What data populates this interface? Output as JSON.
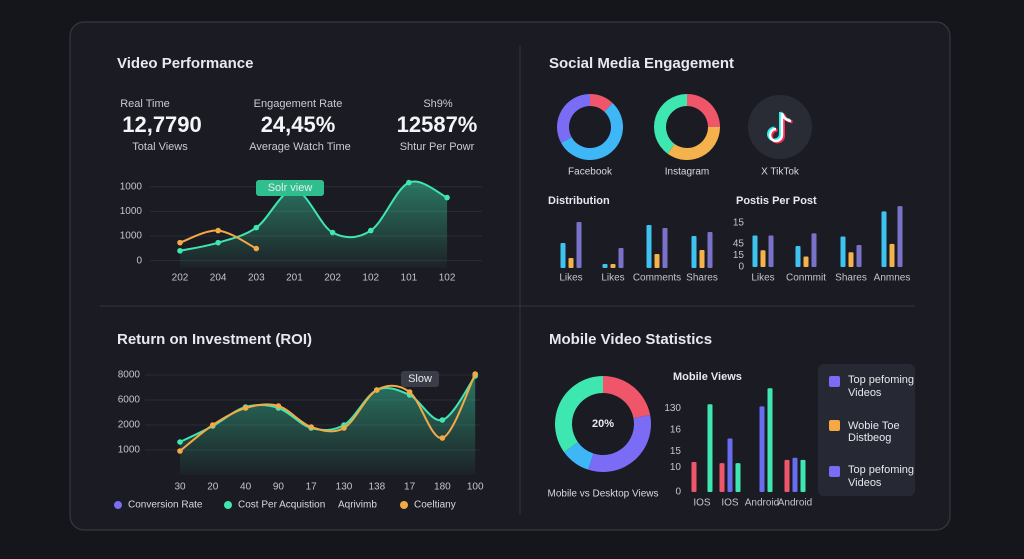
{
  "panels": {
    "video": {
      "kpis": [
        {
          "label": "Real Time",
          "value": "12,7790",
          "caption": "Total Views"
        },
        {
          "label": "Engagement Rate",
          "value": "24,45%",
          "caption": "Average Watch Time"
        },
        {
          "label": "Sh9%",
          "value": "12587%",
          "caption": "Shtur Per Powr"
        }
      ]
    },
    "social": {
      "title": "Social Media Engagement",
      "tiktok": "X TikTok"
    },
    "mobile": {
      "title": "Mobile Video Statistics",
      "list": [
        "Top pefoming",
        "Videos",
        "Wobie Toe",
        "Distbeog",
        "Top pefoming",
        "Videos"
      ]
    }
  },
  "chart_data": [
    {
      "type": "line",
      "title": "Video Performance",
      "categories": [
        "202",
        "204",
        "203",
        "201",
        "202",
        "102",
        "101",
        "102"
      ],
      "series": [
        {
          "color": "#3ee6b0",
          "area": true,
          "values": [
            400,
            730,
            1340,
            2880,
            1140,
            1220,
            3170,
            2560
          ]
        },
        {
          "color": "#f5a946",
          "values": [
            730,
            1220,
            490,
            null,
            null,
            null,
            null,
            null
          ]
        }
      ],
      "ylim": [
        -300,
        3600
      ],
      "yticks": [
        0,
        1000,
        {
          "value": 2000,
          "label": "1000"
        },
        {
          "value": 3000,
          "label": "1000"
        }
      ],
      "grid": true,
      "annotation": "Solr view"
    },
    {
      "type": "pie",
      "title": "Facebook",
      "values": [
        12,
        55,
        33
      ],
      "colors": [
        "#f0566a",
        "#3fb6f5",
        "#7b6cf6"
      ]
    },
    {
      "type": "pie",
      "title": "Instagram",
      "values": [
        25,
        35,
        40
      ],
      "colors": [
        "#f0566a",
        "#f5b14c",
        "#3ee6b0"
      ]
    },
    {
      "type": "bar",
      "title": "Distribution",
      "categories": [
        "Likes",
        "Likes",
        "Comments",
        "Shares"
      ],
      "series": [
        {
          "color": "#3ec3f0",
          "values": [
            25,
            4,
            43,
            32
          ]
        },
        {
          "color": "#f5b14c",
          "values": [
            10,
            4,
            14,
            18
          ]
        },
        {
          "color": "#7a72c8",
          "values": [
            46,
            20,
            40,
            36
          ]
        }
      ],
      "ylim": [
        0,
        50
      ]
    },
    {
      "type": "bar",
      "title": "Postis Per Post",
      "categories": [
        "Likes",
        "Conmmit",
        "Shares",
        "Anmnes"
      ],
      "series": [
        {
          "color": "#3ec3f0",
          "values": [
            30,
            20,
            29,
            53
          ]
        },
        {
          "color": "#f5b14c",
          "values": [
            16,
            10,
            14,
            22
          ]
        },
        {
          "color": "#7a72c8",
          "values": [
            30,
            32,
            21,
            58
          ]
        }
      ],
      "ylim": [
        0,
        60
      ],
      "yticks": [
        0,
        {
          "value": 11,
          "label": "15"
        },
        {
          "value": 22,
          "label": "45"
        },
        {
          "value": 42,
          "label": "15"
        }
      ]
    },
    {
      "type": "line",
      "title": "Return on Investment (ROI)",
      "categories": [
        "30",
        "20",
        "40",
        "90",
        "17",
        "130",
        "138",
        "17",
        "180",
        "100"
      ],
      "series": [
        {
          "color": "#3ee6b0",
          "area": true,
          "values": [
            1320,
            1960,
            2720,
            2680,
            1880,
            2000,
            3400,
            3200,
            2200,
            3960
          ]
        },
        {
          "color": "#f5a946",
          "values": [
            960,
            2000,
            2680,
            2760,
            1920,
            1880,
            3400,
            3320,
            1480,
            4040
          ]
        }
      ],
      "ylim": [
        0,
        4400
      ],
      "yticks": [
        1000,
        2000,
        {
          "value": 3000,
          "label": "6000"
        },
        {
          "value": 4000,
          "label": "8000"
        }
      ],
      "grid": true,
      "annotation": "Slow",
      "legend": [
        {
          "label": "Conversion Rate",
          "color": "#7b6cf6"
        },
        {
          "label": "Cost Per Acquistion",
          "color": "#3ee6b0"
        },
        {
          "label": "Aqrivimb",
          "color": null
        },
        {
          "label": "Coeltiany",
          "color": "#f5a946"
        }
      ]
    },
    {
      "type": "pie",
      "title": "Mobile vs Desktop Views",
      "center_label": "20%",
      "values": [
        22,
        33,
        10,
        35
      ],
      "colors": [
        "#f0566a",
        "#7b6cf6",
        "#3fb6f5",
        "#3ee6b0"
      ]
    },
    {
      "type": "bar",
      "title": "Mobile Views",
      "categories": [
        "IOS",
        "IOS",
        "Android",
        "Android"
      ],
      "series": [
        {
          "color": "#f0566a",
          "values": [
            28,
            27,
            null,
            30
          ]
        },
        {
          "color": "#6a6cf0",
          "values": [
            null,
            50,
            80,
            32
          ]
        },
        {
          "color": "#3ee6b0",
          "values": [
            82,
            27,
            97,
            30
          ]
        }
      ],
      "ylim": [
        0,
        100
      ],
      "yticks": [
        0,
        {
          "value": 23,
          "label": "10"
        },
        {
          "value": 38,
          "label": "15"
        },
        {
          "value": 58,
          "label": "16"
        },
        {
          "value": 78,
          "label": "130"
        }
      ]
    }
  ]
}
